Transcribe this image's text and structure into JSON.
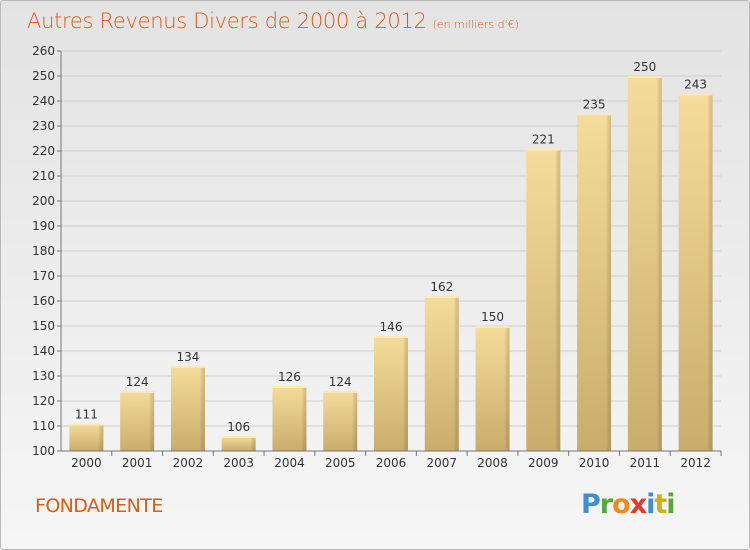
{
  "header": {
    "title": "Autres Revenus Divers de 2000 à 2012",
    "subtitle": "(en milliers d'€)"
  },
  "footer": {
    "place": "FONDAMENTE",
    "brand": [
      "P",
      "r",
      "o",
      "x",
      "i",
      "t",
      "i"
    ]
  },
  "colors": {
    "title": "#e05a13",
    "bar_light": "#f6dc9b",
    "bar_dark": "#c8ad6b",
    "bar_edge": "#fbeab8"
  },
  "chart_data": {
    "type": "bar",
    "title": "Autres Revenus Divers de 2000 à 2012",
    "subtitle": "(en milliers d'€)",
    "xlabel": "",
    "ylabel": "",
    "categories": [
      "2000",
      "2001",
      "2002",
      "2003",
      "2004",
      "2005",
      "2006",
      "2007",
      "2008",
      "2009",
      "2010",
      "2011",
      "2012"
    ],
    "values": [
      111,
      124,
      134,
      106,
      126,
      124,
      146,
      162,
      150,
      221,
      235,
      250,
      243
    ],
    "ylim": [
      100,
      260
    ],
    "yticks": [
      100,
      110,
      120,
      130,
      140,
      150,
      160,
      170,
      180,
      190,
      200,
      210,
      220,
      230,
      240,
      250,
      260
    ],
    "grid": true,
    "data_labels": true
  }
}
